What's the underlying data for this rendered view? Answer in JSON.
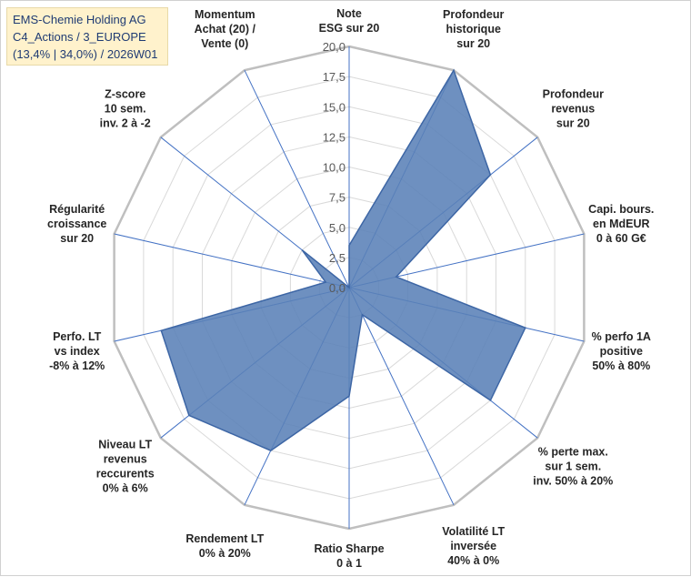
{
  "title": {
    "line1": "EMS-Chemie Holding AG",
    "line2": "C4_Actions / 3_EUROPE",
    "line3": "(13,4% | 34,0%) / 2026W01"
  },
  "chart_data": {
    "type": "radar",
    "rmin": 0,
    "rmax": 20,
    "tick_step": 2.5,
    "tick_labels": [
      "0,0",
      "2,5",
      "5,0",
      "7,5",
      "10,0",
      "12,5",
      "15,0",
      "17,5",
      "20,0"
    ],
    "axes": [
      {
        "lines": [
          "Note",
          "ESG sur 20"
        ],
        "value": 3.5
      },
      {
        "lines": [
          "Profondeur",
          "historique",
          "sur 20"
        ],
        "value": 20
      },
      {
        "lines": [
          "Profondeur",
          "revenus",
          "sur 20"
        ],
        "value": 15
      },
      {
        "lines": [
          "Capi. bours.",
          "en MdEUR",
          "0 à 60 G€"
        ],
        "value": 4
      },
      {
        "lines": [
          "% perfo 1A",
          "positive",
          "50% à 80%"
        ],
        "value": 15
      },
      {
        "lines": [
          "% perte max.",
          "sur 1 sem.",
          "inv. 50% à 20%"
        ],
        "value": 15
      },
      {
        "lines": [
          "Volatilité LT",
          "inversée",
          "40% à 0%"
        ],
        "value": 2.5
      },
      {
        "lines": [
          "Ratio Sharpe",
          "0 à 1"
        ],
        "value": 9
      },
      {
        "lines": [
          "Rendement LT",
          "0% à 20%"
        ],
        "value": 15
      },
      {
        "lines": [
          "Niveau LT",
          "revenus",
          "reccurents",
          "0% à 6%"
        ],
        "value": 17
      },
      {
        "lines": [
          "Perfo. LT",
          "vs index",
          "-8% à 12%"
        ],
        "value": 16
      },
      {
        "lines": [
          "Régularité",
          "croissance",
          "sur 20"
        ],
        "value": 2
      },
      {
        "lines": [
          "Z-score",
          "10 sem.",
          "inv. 2 à -2"
        ],
        "value": 5
      },
      {
        "lines": [
          "Momentum",
          "Achat (20) /",
          "Vente (0)"
        ],
        "value": 0
      }
    ],
    "colors": {
      "fill": "#5a81b7",
      "stroke": "#3d66a5",
      "grid": "#d9d9d9",
      "outer_ring": "#bfbfbf",
      "spoke": "#4472c4"
    }
  }
}
